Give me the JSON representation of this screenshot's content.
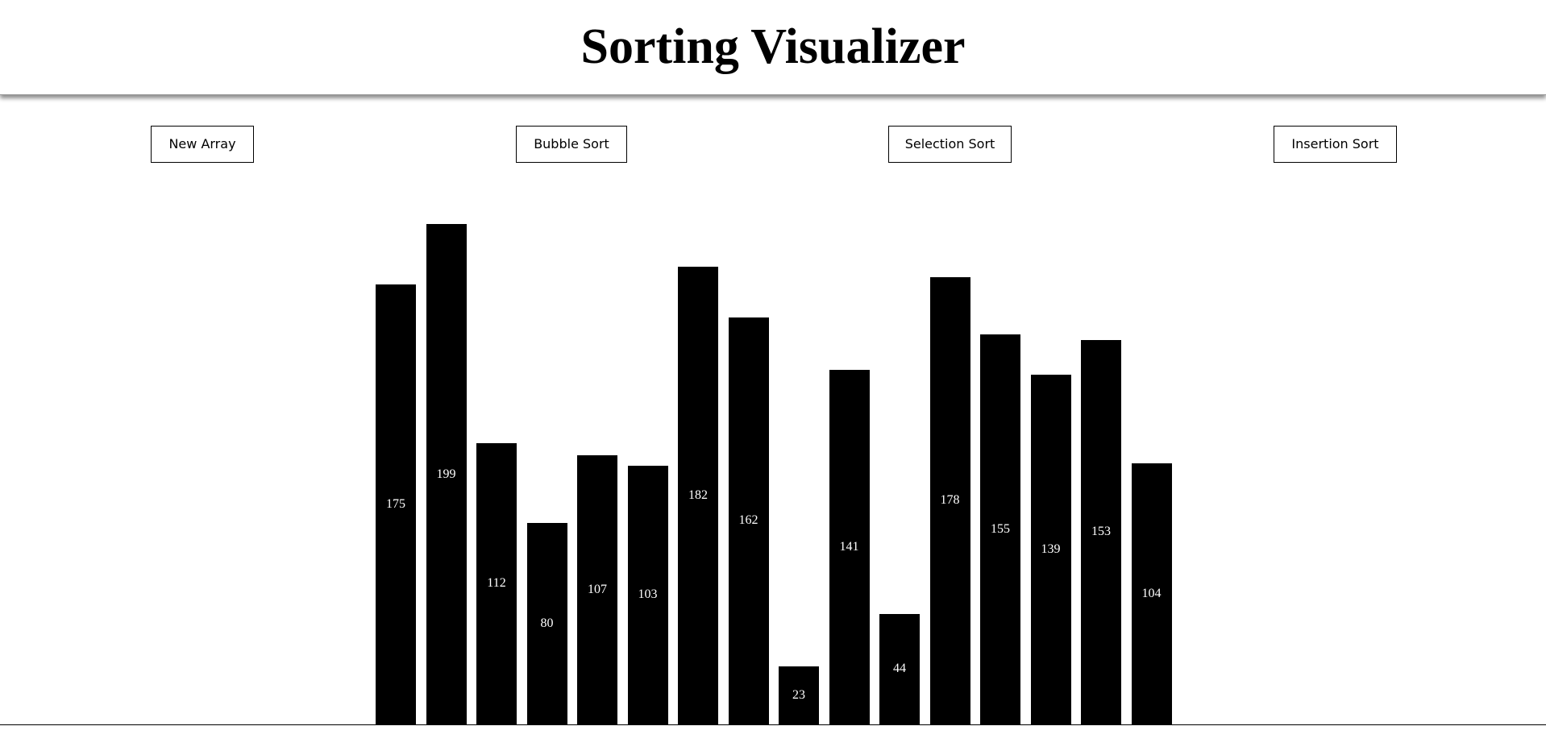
{
  "header": {
    "title": "Sorting Visualizer"
  },
  "toolbar": {
    "new_array_label": "New Array",
    "bubble_sort_label": "Bubble Sort",
    "selection_sort_label": "Selection Sort",
    "insertion_sort_label": "Insertion Sort"
  },
  "array": {
    "values": [
      175,
      199,
      112,
      80,
      107,
      103,
      182,
      162,
      23,
      141,
      44,
      178,
      155,
      139,
      153,
      104
    ]
  },
  "colors": {
    "bar": "#000000",
    "bar_label": "#ffffff",
    "background": "#ffffff"
  }
}
